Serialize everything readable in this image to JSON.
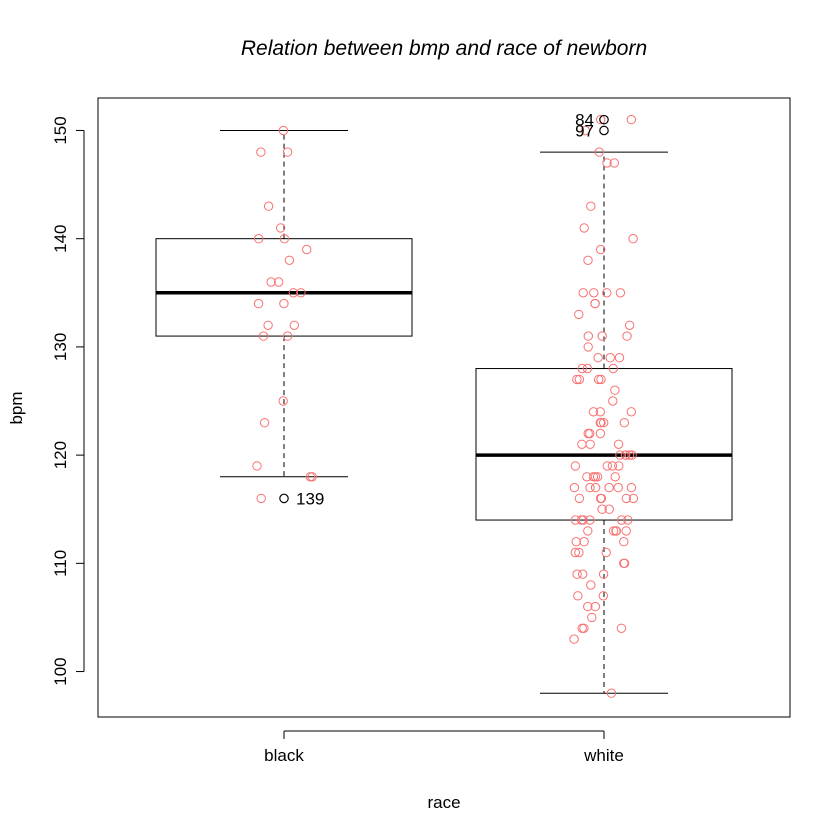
{
  "chart_data": {
    "type": "boxplot",
    "title": "Relation between bmp and race of newborn",
    "xlabel": "race",
    "ylabel": "bpm",
    "categories": [
      "black",
      "white"
    ],
    "ylim": [
      95.8,
      153
    ],
    "yticks": [
      100,
      110,
      120,
      130,
      140,
      150
    ],
    "box_color": "#000000",
    "point_color": "#f87171",
    "boxes": [
      {
        "category": "black",
        "whisker_low": 118,
        "q1": 131,
        "median": 135,
        "q3": 140,
        "whisker_high": 150
      },
      {
        "category": "white",
        "whisker_low": 98,
        "q1": 114,
        "median": 120,
        "q3": 128,
        "whisker_high": 148
      }
    ],
    "outliers": [
      {
        "category": "black",
        "value": 116,
        "label": "139"
      },
      {
        "category": "white",
        "value": 151,
        "label": "84"
      },
      {
        "category": "white",
        "value": 150,
        "label": "97"
      }
    ],
    "points": [
      {
        "category": "black",
        "values": [
          150,
          148,
          148,
          143,
          141,
          140,
          140,
          139,
          138,
          136,
          136,
          135,
          135,
          134,
          134,
          132,
          132,
          131,
          131,
          125,
          123,
          119,
          118,
          118,
          116
        ]
      },
      {
        "category": "white",
        "values": [
          151,
          151,
          150,
          148,
          147,
          147,
          143,
          141,
          140,
          139,
          138,
          135,
          135,
          135,
          135,
          134,
          134,
          133,
          132,
          131,
          131,
          131,
          130,
          129,
          129,
          129,
          128,
          128,
          128,
          127,
          127,
          127,
          127,
          126,
          125,
          124,
          124,
          124,
          123,
          123,
          123,
          123,
          122,
          122,
          122,
          121,
          121,
          121,
          120,
          120,
          120,
          120,
          120,
          119,
          119,
          119,
          119,
          118,
          118,
          118,
          118,
          118,
          117,
          117,
          117,
          117,
          117,
          117,
          116,
          116,
          116,
          116,
          116,
          115,
          115,
          114,
          114,
          114,
          114,
          114,
          114,
          113,
          113,
          113,
          113,
          113,
          112,
          112,
          112,
          111,
          111,
          111,
          110,
          110,
          109,
          109,
          109,
          108,
          107,
          107,
          106,
          106,
          105,
          104,
          104,
          104,
          103,
          98
        ]
      }
    ]
  }
}
